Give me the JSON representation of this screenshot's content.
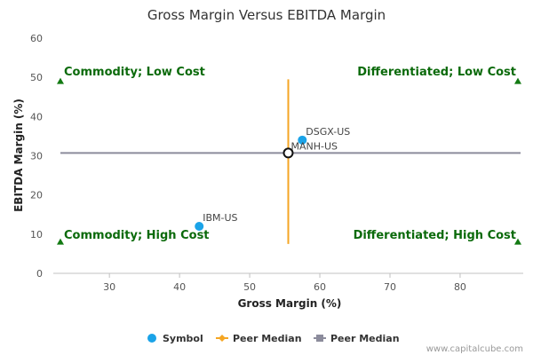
{
  "chart_data": {
    "type": "scatter",
    "title": "Gross Margin Versus EBITDA Margin",
    "xlabel": "Gross Margin (%)",
    "ylabel": "EBITDA Margin (%)",
    "xlim": [
      22,
      89
    ],
    "ylim": [
      0,
      60
    ],
    "x_ticks": [
      30,
      40,
      50,
      60,
      70,
      80
    ],
    "y_ticks": [
      0,
      10,
      20,
      30,
      40,
      50,
      60
    ],
    "points": [
      {
        "label": "DSGX-US",
        "x": 57.5,
        "y": 34
      },
      {
        "label": "MANH-US",
        "x": 55.5,
        "y": 30.7
      },
      {
        "label": "IBM-US",
        "x": 42.8,
        "y": 12
      }
    ],
    "peer_median_x": {
      "value": 55.5,
      "y_range": [
        7.5,
        49.5
      ]
    },
    "peer_median_y": {
      "value": 30.7
    },
    "quadrants": {
      "top_left": "Commodity; Low Cost",
      "top_right": "Differentiated; Low Cost",
      "bottom_left": "Commodity; High Cost",
      "bottom_right": "Differentiated; High Cost"
    },
    "quadrant_marker_y": {
      "top": 49,
      "bottom": 8
    },
    "legend": [
      {
        "name": "Symbol",
        "kind": "dot",
        "color": "#1aa3e8"
      },
      {
        "name": "Peer Median",
        "kind": "vline",
        "color": "#f5a623"
      },
      {
        "name": "Peer Median",
        "kind": "hline",
        "color": "#8c8c9c"
      }
    ],
    "grid": false,
    "legend_position": "bottom"
  },
  "colors": {
    "point": "#1aa3e8",
    "median_x": "#f5a623",
    "median_y": "#8c8c9c",
    "quadrant_text": "#0b6a0b",
    "triangle": "#137a13"
  },
  "footer": {
    "credit": "www.capitalcube.com"
  }
}
